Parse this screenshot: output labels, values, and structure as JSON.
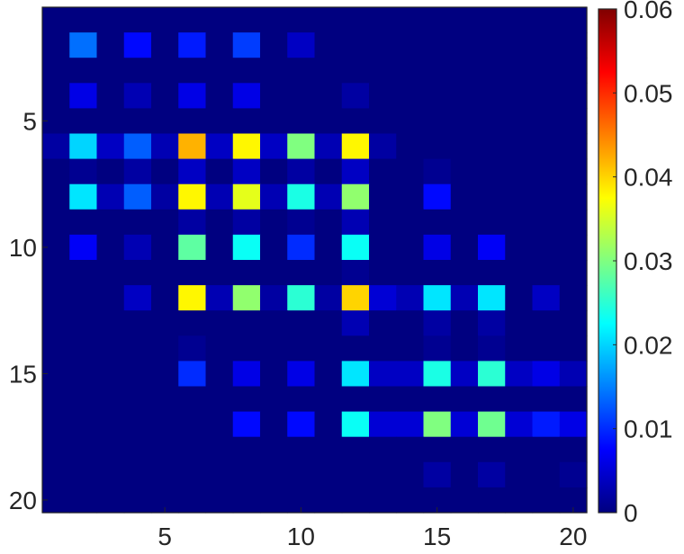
{
  "chart_data": {
    "type": "heatmap",
    "title": "",
    "xlabel": "",
    "ylabel": "",
    "n_rows": 20,
    "n_cols": 20,
    "xlim": [
      0.5,
      20.5
    ],
    "ylim": [
      0.5,
      20.5
    ],
    "y_axis_direction": "top-to-bottom",
    "x_ticks": [
      5,
      10,
      15,
      20
    ],
    "x_tick_labels": [
      "5",
      "10",
      "15",
      "20"
    ],
    "y_ticks": [
      5,
      10,
      15,
      20
    ],
    "y_tick_labels": [
      "5",
      "10",
      "15",
      "20"
    ],
    "colormap": "jet",
    "clim": [
      0,
      0.06
    ],
    "colorbar": {
      "ticks": [
        0,
        0.01,
        0.02,
        0.03,
        0.04,
        0.05,
        0.06
      ],
      "tick_labels": [
        "0",
        "0.01",
        "0.02",
        "0.03",
        "0.04",
        "0.05",
        "0.06"
      ],
      "placement": "right"
    },
    "grid": false,
    "values": [
      [
        0,
        0,
        0,
        0,
        0,
        0,
        0,
        0,
        0,
        0,
        0,
        0,
        0,
        0,
        0,
        0,
        0,
        0,
        0,
        0
      ],
      [
        0,
        0.014,
        0,
        0.008,
        0,
        0.009,
        0,
        0.011,
        0,
        0.004,
        0,
        0,
        0,
        0,
        0,
        0,
        0,
        0,
        0,
        0
      ],
      [
        0,
        0,
        0,
        0,
        0,
        0,
        0,
        0,
        0,
        0,
        0,
        0,
        0,
        0,
        0,
        0,
        0,
        0,
        0,
        0
      ],
      [
        0,
        0.006,
        0,
        0.003,
        0,
        0.006,
        0,
        0.006,
        0,
        0,
        0,
        0.002,
        0,
        0,
        0,
        0,
        0,
        0,
        0,
        0
      ],
      [
        0,
        0,
        0,
        0,
        0,
        0,
        0,
        0,
        0,
        0,
        0,
        0,
        0,
        0,
        0,
        0,
        0,
        0,
        0,
        0
      ],
      [
        0.002,
        0.02,
        0.004,
        0.013,
        0.003,
        0.042,
        0.004,
        0.038,
        0.004,
        0.03,
        0.003,
        0.038,
        0.002,
        0,
        0,
        0,
        0,
        0,
        0,
        0
      ],
      [
        0,
        0.001,
        0,
        0.002,
        0,
        0.004,
        0,
        0.004,
        0,
        0.002,
        0,
        0.004,
        0,
        0,
        0.001,
        0,
        0,
        0,
        0,
        0
      ],
      [
        0,
        0.021,
        0.003,
        0.013,
        0.002,
        0.038,
        0.003,
        0.036,
        0.003,
        0.024,
        0.003,
        0.031,
        0,
        0,
        0.008,
        0,
        0,
        0,
        0,
        0
      ],
      [
        0,
        0,
        0,
        0,
        0,
        0.002,
        0,
        0.002,
        0,
        0.001,
        0,
        0.003,
        0,
        0,
        0,
        0,
        0,
        0,
        0,
        0
      ],
      [
        0,
        0.007,
        0,
        0.003,
        0,
        0.028,
        0,
        0.023,
        0,
        0.01,
        0,
        0.023,
        0,
        0,
        0.006,
        0,
        0.007,
        0,
        0,
        0
      ],
      [
        0,
        0,
        0,
        0,
        0,
        0,
        0,
        0,
        0,
        0,
        0,
        0.001,
        0,
        0,
        0,
        0,
        0,
        0,
        0,
        0
      ],
      [
        0,
        0,
        0,
        0.004,
        0,
        0.038,
        0.003,
        0.031,
        0.002,
        0.025,
        0.002,
        0.04,
        0.005,
        0.003,
        0.021,
        0.003,
        0.021,
        0,
        0.004,
        0
      ],
      [
        0,
        0,
        0,
        0,
        0,
        0,
        0,
        0,
        0,
        0,
        0,
        0.003,
        0,
        0,
        0.002,
        0,
        0.002,
        0,
        0,
        0
      ],
      [
        0,
        0,
        0,
        0,
        0,
        0.001,
        0,
        0,
        0,
        0,
        0,
        0,
        0,
        0,
        0.001,
        0,
        0.001,
        0,
        0,
        0
      ],
      [
        0,
        0,
        0,
        0,
        0,
        0.01,
        0,
        0.006,
        0,
        0.006,
        0,
        0.021,
        0.004,
        0.004,
        0.024,
        0.004,
        0.025,
        0.004,
        0.006,
        0.003
      ],
      [
        0,
        0,
        0,
        0,
        0,
        0,
        0,
        0,
        0,
        0,
        0,
        0,
        0,
        0,
        0,
        0,
        0,
        0,
        0,
        0
      ],
      [
        0,
        0,
        0,
        0,
        0,
        0,
        0,
        0.008,
        0,
        0.008,
        0,
        0.023,
        0.005,
        0.005,
        0.03,
        0.005,
        0.029,
        0.005,
        0.009,
        0.006
      ],
      [
        0,
        0,
        0,
        0,
        0,
        0,
        0,
        0,
        0,
        0,
        0,
        0,
        0,
        0,
        0,
        0,
        0,
        0,
        0,
        0
      ],
      [
        0,
        0,
        0,
        0,
        0,
        0,
        0,
        0,
        0,
        0,
        0,
        0,
        0,
        0,
        0.002,
        0,
        0.002,
        0,
        0,
        0.001
      ],
      [
        0,
        0,
        0,
        0,
        0,
        0,
        0,
        0,
        0,
        0,
        0,
        0,
        0,
        0,
        0,
        0,
        0,
        0,
        0,
        0
      ]
    ]
  }
}
